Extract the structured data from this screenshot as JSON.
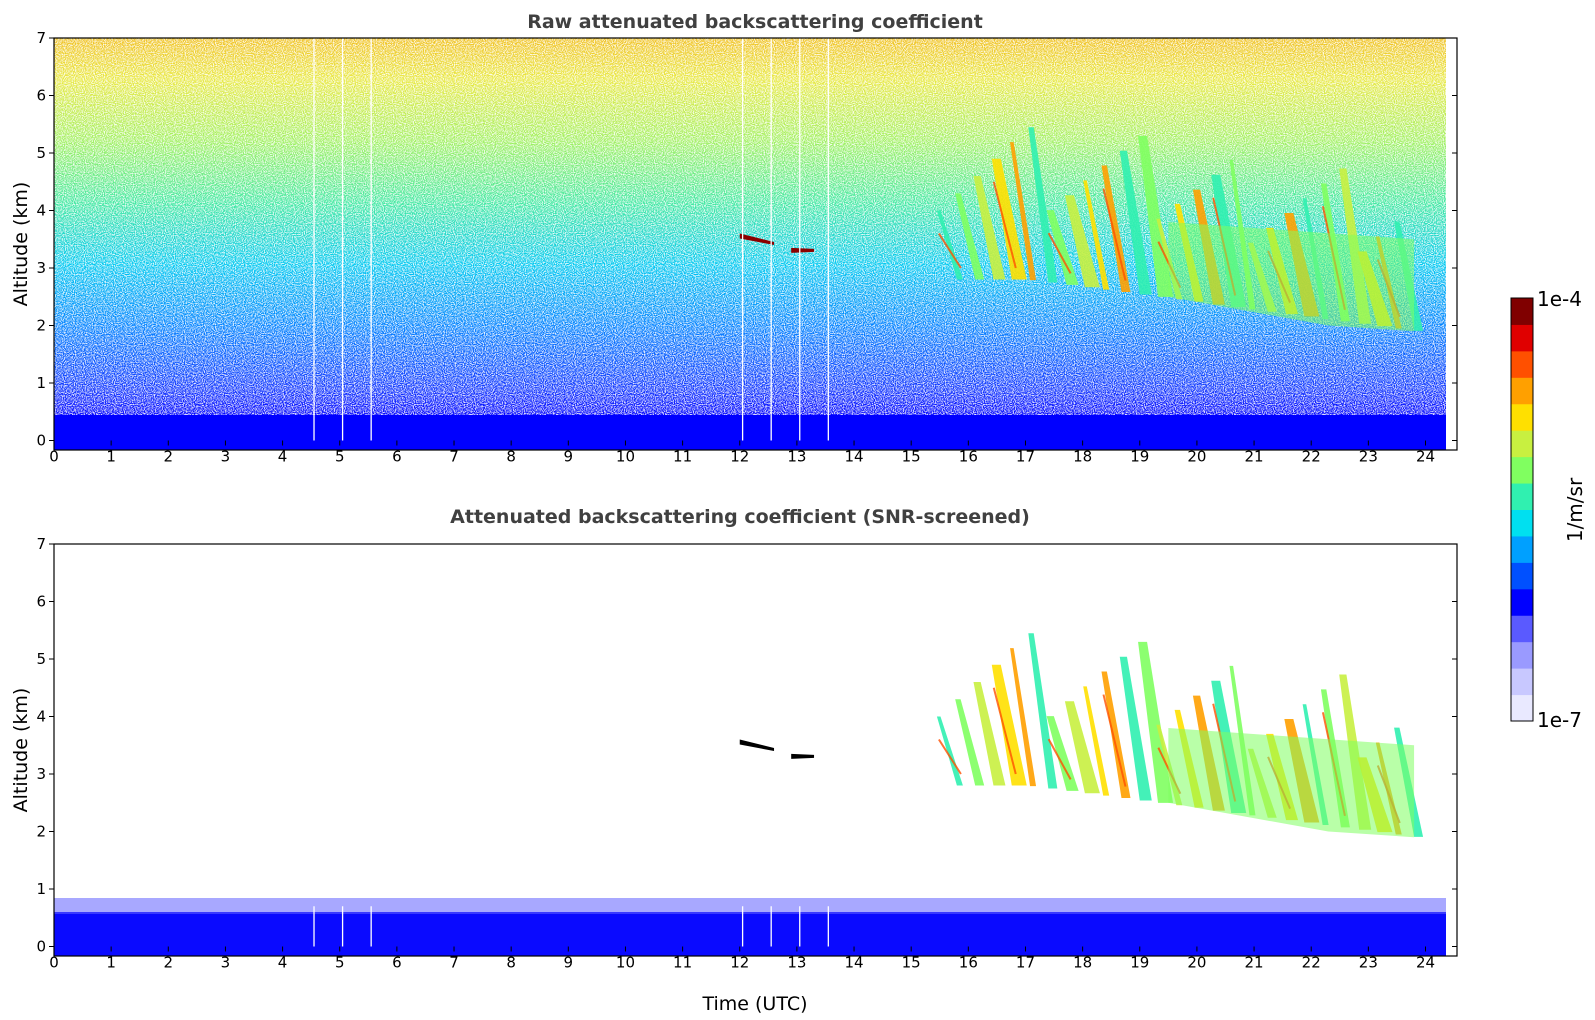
{
  "chart_data": [
    {
      "type": "heatmap",
      "title": "Raw attenuated backscattering coefficient",
      "xlabel": "",
      "ylabel": "Altitude (km)",
      "xlim": [
        0,
        24
      ],
      "ylim": [
        0,
        7
      ],
      "xticks": [
        "0",
        "1",
        "2",
        "3",
        "4",
        "5",
        "6",
        "7",
        "8",
        "9",
        "10",
        "11",
        "12",
        "13",
        "14",
        "15",
        "16",
        "17",
        "18",
        "19",
        "20",
        "21",
        "22",
        "23",
        "24"
      ],
      "yticks": [
        "0",
        "1",
        "2",
        "3",
        "4",
        "5",
        "6",
        "7"
      ],
      "data_gaps_utc": [
        4.55,
        5.05,
        5.55,
        12.05,
        12.55,
        13.05,
        13.55
      ],
      "features": [
        {
          "kind": "boundary-layer",
          "altitude_km": [
            0,
            0.55
          ],
          "time_utc": [
            0,
            23.8
          ],
          "value": "high"
        },
        {
          "kind": "noise-gradient",
          "altitude_km": [
            0.6,
            7
          ],
          "value": "increasing-with-altitude"
        },
        {
          "kind": "cloud-layer",
          "time_utc": [
            12.0,
            12.6
          ],
          "altitude_km": [
            3.4,
            3.6
          ],
          "value": "very-high"
        },
        {
          "kind": "cloud-layer",
          "time_utc": [
            12.9,
            13.3
          ],
          "altitude_km": [
            3.28,
            3.35
          ],
          "value": "very-high"
        },
        {
          "kind": "cirrus-fall-streaks",
          "time_utc": [
            15.8,
            23.8
          ],
          "altitude_km": [
            1.9,
            6.3
          ],
          "value": "medium-high"
        }
      ]
    },
    {
      "type": "heatmap",
      "title": "Attenuated backscattering coefficient (SNR-screened)",
      "xlabel": "Time (UTC)",
      "ylabel": "Altitude (km)",
      "xlim": [
        0,
        24
      ],
      "ylim": [
        0,
        7
      ],
      "xticks": [
        "0",
        "1",
        "2",
        "3",
        "4",
        "5",
        "6",
        "7",
        "8",
        "9",
        "10",
        "11",
        "12",
        "13",
        "14",
        "15",
        "16",
        "17",
        "18",
        "19",
        "20",
        "21",
        "22",
        "23",
        "24"
      ],
      "yticks": [
        "0",
        "1",
        "2",
        "3",
        "4",
        "5",
        "6",
        "7"
      ],
      "data_gaps_utc": [
        4.55,
        5.05,
        5.55,
        12.05,
        12.55,
        13.05,
        13.55
      ],
      "features": [
        {
          "kind": "boundary-layer",
          "altitude_km": [
            0,
            0.7
          ],
          "time_utc": [
            0,
            23.8
          ],
          "value": "low"
        },
        {
          "kind": "cloud-layer",
          "time_utc": [
            12.0,
            12.6
          ],
          "altitude_km": [
            3.4,
            3.6
          ],
          "value": "saturated"
        },
        {
          "kind": "cloud-layer",
          "time_utc": [
            12.9,
            13.3
          ],
          "altitude_km": [
            3.28,
            3.35
          ],
          "value": "saturated"
        },
        {
          "kind": "cirrus-fall-streaks",
          "time_utc": [
            15.8,
            23.8
          ],
          "altitude_km": [
            1.9,
            6.3
          ],
          "value": "medium-high"
        }
      ]
    }
  ],
  "colorbar": {
    "label": "1/m/sr",
    "max_label": "1e-4",
    "min_label": "1e-7",
    "scale": "log",
    "colormap": "jet",
    "colors": [
      "#e9e9ff",
      "#c8c8ff",
      "#9a9aff",
      "#5a5aff",
      "#0000ff",
      "#0050ff",
      "#00a0ff",
      "#00e0f0",
      "#30f0b0",
      "#80ff60",
      "#c8f040",
      "#ffe000",
      "#ffa000",
      "#ff5000",
      "#e00000",
      "#800000"
    ]
  }
}
